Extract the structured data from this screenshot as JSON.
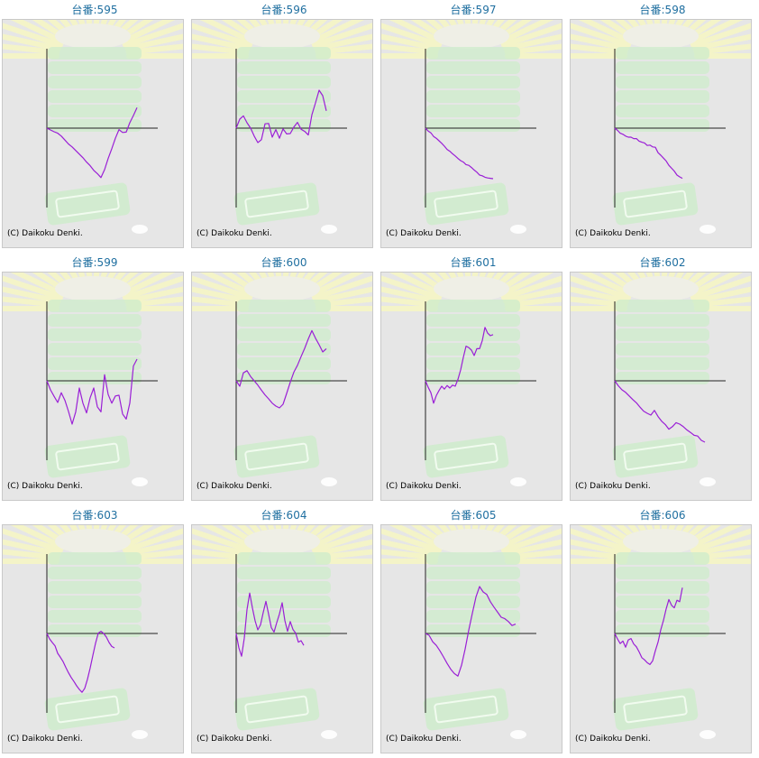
{
  "colors": {
    "title": "#1f6fa0",
    "line": "#9a1fd6",
    "axis": "#222222",
    "background": "#e6e6e6",
    "border": "#c9c9c9",
    "watermark_green": "#cdeccb",
    "watermark_rays": "#f4f4c8"
  },
  "copyright": "(C) Daikoku Denki.",
  "chart_data": [
    {
      "type": "line",
      "title": "台番:595",
      "x": [
        0,
        4,
        8,
        12,
        16,
        20,
        24,
        28,
        32,
        36,
        40,
        44,
        48,
        52,
        56,
        60,
        64,
        68,
        72,
        76,
        80,
        84,
        88,
        92,
        96,
        100
      ],
      "y": [
        0,
        -0.5,
        -1,
        -1.4,
        -2.2,
        -3.3,
        -4.4,
        -5.2,
        -6.2,
        -7.2,
        -8.2,
        -9.4,
        -10.4,
        -11.7,
        -12.6,
        -13.7,
        -11.5,
        -8.4,
        -5.7,
        -2.8,
        -0.4,
        -1.2,
        -1.1,
        1.5,
        3.5,
        5.7
      ]
    },
    {
      "type": "line",
      "title": "台番:596",
      "x": [
        0,
        4,
        8,
        12,
        16,
        20,
        24,
        28,
        32,
        36,
        40,
        44,
        48,
        52,
        56,
        60,
        64,
        68,
        72,
        76,
        80,
        84,
        88,
        92,
        96,
        100
      ],
      "y": [
        0,
        2.5,
        3.4,
        1.5,
        0,
        -2.2,
        -4,
        -3.2,
        1.2,
        1.3,
        -2.5,
        -0.4,
        -2.8,
        -0.2,
        -1.6,
        -1.5,
        0.3,
        1.6,
        -0.3,
        -0.9,
        -1.9,
        3.7,
        7,
        10.5,
        9,
        4.8
      ]
    },
    {
      "type": "line",
      "title": "台番:597",
      "x": [
        0,
        3,
        6,
        9,
        12,
        15,
        18,
        21,
        24,
        27,
        30,
        33,
        36,
        39,
        42,
        45,
        48,
        51,
        54,
        57,
        60,
        63,
        66,
        69,
        72,
        75
      ],
      "y": [
        0,
        -0.8,
        -1.3,
        -2.3,
        -2.8,
        -3.5,
        -4.2,
        -5,
        -5.9,
        -6.4,
        -7.1,
        -7.7,
        -8.4,
        -9,
        -9.4,
        -10.1,
        -10.3,
        -10.9,
        -11.6,
        -12.2,
        -13,
        -13.2,
        -13.6,
        -13.8,
        -13.9,
        -14
      ]
    },
    {
      "type": "line",
      "title": "台番:598",
      "x": [
        0,
        3,
        6,
        9,
        12,
        15,
        18,
        21,
        24,
        27,
        30,
        33,
        36,
        39,
        42,
        45,
        48,
        51,
        54,
        57,
        60,
        63,
        66,
        69,
        72,
        75
      ],
      "y": [
        0,
        -0.6,
        -1.4,
        -1.7,
        -2.2,
        -2.5,
        -2.5,
        -2.9,
        -2.9,
        -3.6,
        -3.9,
        -4.1,
        -4.8,
        -4.7,
        -5.2,
        -5.3,
        -6.8,
        -7.5,
        -8.3,
        -9.1,
        -10.3,
        -11.1,
        -11.9,
        -13,
        -13.5,
        -13.9
      ]
    },
    {
      "type": "line",
      "title": "台番:599",
      "x": [
        0,
        4,
        8,
        12,
        16,
        20,
        24,
        28,
        32,
        36,
        40,
        44,
        48,
        52,
        56,
        60,
        64,
        68,
        72,
        76,
        80,
        84,
        88,
        92,
        96,
        100
      ],
      "y": [
        0,
        -2.5,
        -4.3,
        -6,
        -3.3,
        -5.4,
        -8.5,
        -12,
        -8.6,
        -2,
        -6.2,
        -8.9,
        -4.7,
        -2,
        -7.2,
        -8.6,
        1.7,
        -3.8,
        -6.2,
        -4.2,
        -4,
        -9.2,
        -10.6,
        -6.2,
        4.1,
        6
      ]
    },
    {
      "type": "line",
      "title": "台番:600",
      "x": [
        0,
        4,
        8,
        12,
        16,
        20,
        24,
        28,
        32,
        36,
        40,
        44,
        48,
        52,
        56,
        60,
        64,
        68,
        72,
        76,
        80,
        84,
        88,
        92,
        96,
        100
      ],
      "y": [
        0,
        -1.5,
        2.2,
        2.8,
        1.2,
        0,
        -1.2,
        -2.6,
        -3.9,
        -5,
        -6.2,
        -7,
        -7.5,
        -6.5,
        -3.5,
        -0.4,
        2.4,
        4.3,
        6.7,
        9,
        11.6,
        13.9,
        11.8,
        10,
        8,
        8.9
      ]
    },
    {
      "type": "line",
      "title": "台番:601",
      "x": [
        0,
        3,
        6,
        9,
        12,
        15,
        18,
        21,
        24,
        27,
        30,
        33,
        36,
        39,
        42,
        45,
        48,
        51,
        54,
        57,
        60,
        63,
        66,
        69,
        72,
        75
      ],
      "y": [
        0,
        -1.8,
        -3.3,
        -6.2,
        -4.1,
        -2.7,
        -1.5,
        -2.3,
        -1.3,
        -2,
        -1.2,
        -1.5,
        0.4,
        3,
        6.5,
        9.6,
        9.2,
        8.5,
        7,
        8.9,
        8.9,
        11.1,
        14.8,
        13.2,
        12.5,
        12.8
      ]
    },
    {
      "type": "line",
      "title": "台番:602",
      "x": [
        0,
        4,
        8,
        12,
        16,
        20,
        24,
        28,
        32,
        36,
        40,
        44,
        48,
        52,
        56,
        60,
        64,
        68,
        72,
        76,
        80,
        84,
        88,
        92,
        96,
        100
      ],
      "y": [
        0,
        -1.4,
        -2.5,
        -3.2,
        -4.2,
        -5.2,
        -6.1,
        -7.3,
        -8.4,
        -9,
        -9.5,
        -8.2,
        -9.9,
        -11.2,
        -12.1,
        -13.4,
        -12.7,
        -11.6,
        -12,
        -12.7,
        -13.6,
        -14.3,
        -15.1,
        -15.3,
        -16.5,
        -17
      ]
    },
    {
      "type": "line",
      "title": "台番:603",
      "x": [
        0,
        3,
        6,
        9,
        12,
        15,
        18,
        21,
        24,
        27,
        30,
        33,
        36,
        39,
        42,
        45,
        48,
        51,
        54,
        57,
        60,
        63,
        66,
        69,
        72,
        75
      ],
      "y": [
        0,
        -1.5,
        -2.5,
        -3.4,
        -5.5,
        -6.6,
        -7.8,
        -9.4,
        -10.9,
        -12.2,
        -13.3,
        -14.5,
        -15.5,
        -16.3,
        -15.2,
        -12.7,
        -9.6,
        -6.1,
        -2.7,
        0.1,
        0.6,
        0,
        -1,
        -2.5,
        -3.6,
        -4
      ]
    },
    {
      "type": "line",
      "title": "台番:604",
      "x": [
        0,
        3,
        6,
        9,
        12,
        15,
        18,
        21,
        24,
        27,
        30,
        33,
        36,
        39,
        42,
        45,
        48,
        51,
        54,
        57,
        60,
        63,
        66,
        69,
        72,
        75
      ],
      "y": [
        0,
        -4,
        -6.3,
        -1.3,
        6.6,
        11.2,
        7.1,
        3.5,
        1,
        2.4,
        5.8,
        8.9,
        5.3,
        1.6,
        0.4,
        3,
        5.4,
        8.5,
        3.6,
        0.6,
        3.3,
        1.1,
        0.1,
        -2.4,
        -2,
        -3.3
      ]
    },
    {
      "type": "line",
      "title": "台番:605",
      "x": [
        0,
        4,
        8,
        12,
        16,
        20,
        24,
        28,
        32,
        36,
        40,
        44,
        48,
        52,
        56,
        60,
        64,
        68,
        72,
        76,
        80,
        84,
        88,
        92,
        96,
        100
      ],
      "y": [
        0,
        -0.5,
        -2.3,
        -3.3,
        -4.8,
        -6.5,
        -8.3,
        -9.9,
        -11.1,
        -11.8,
        -8.8,
        -4.3,
        0.9,
        5.6,
        10.1,
        13,
        11.5,
        10.8,
        8.8,
        7.3,
        5.9,
        4.5,
        4.1,
        3.3,
        2.2,
        2.6
      ]
    },
    {
      "type": "line",
      "title": "台番:606",
      "x": [
        0,
        3,
        6,
        9,
        12,
        15,
        18,
        21,
        24,
        27,
        30,
        33,
        36,
        39,
        42,
        45,
        48,
        51,
        54,
        57,
        60,
        63,
        66,
        69,
        72,
        75
      ],
      "y": [
        0,
        -1.5,
        -2.8,
        -2.1,
        -3.8,
        -1.8,
        -1.4,
        -2.9,
        -3.7,
        -5.1,
        -6.7,
        -7.3,
        -8.1,
        -8.6,
        -7.6,
        -4.8,
        -2.4,
        1,
        3.6,
        6.8,
        9.4,
        7.8,
        7.1,
        9.2,
        8.8,
        12.7
      ]
    }
  ]
}
